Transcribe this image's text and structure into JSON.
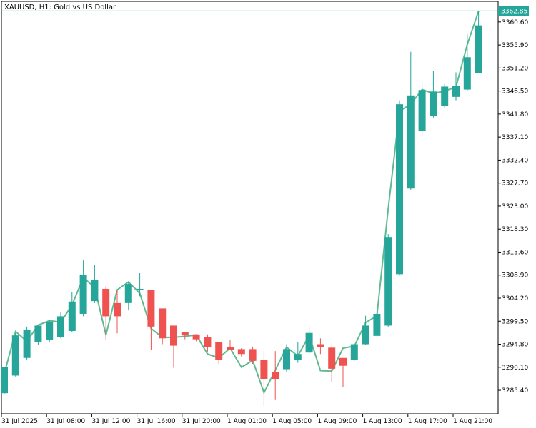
{
  "title": "XAUUSD, H1:  Gold vs US Dollar",
  "price_badge": "3362.85",
  "colors": {
    "bull": "#26a69a",
    "bear": "#ef5350",
    "line": "#5dbb8f",
    "axis": "#000000",
    "frame": "#000000"
  },
  "chart_data": {
    "type": "candlestick",
    "symbol": "XAUUSD",
    "timeframe": "H1",
    "ylim": [
      3280.6,
      3364.8
    ],
    "y_ticks": [
      "3360.60",
      "3355.90",
      "3351.20",
      "3346.50",
      "3341.80",
      "3337.10",
      "3332.40",
      "3327.70",
      "3323.00",
      "3318.30",
      "3313.60",
      "3308.90",
      "3304.20",
      "3299.50",
      "3294.80",
      "3290.10",
      "3285.40"
    ],
    "x_ticks": [
      {
        "label": "31 Jul 2025",
        "bar": 0
      },
      {
        "label": "31 Jul 08:00",
        "bar": 4
      },
      {
        "label": "31 Jul 12:00",
        "bar": 8
      },
      {
        "label": "31 Jul 16:00",
        "bar": 12
      },
      {
        "label": "31 Jul 20:00",
        "bar": 16
      },
      {
        "label": "1 Aug 01:00",
        "bar": 20
      },
      {
        "label": "1 Aug 05:00",
        "bar": 24
      },
      {
        "label": "1 Aug 09:00",
        "bar": 28
      },
      {
        "label": "1 Aug 13:00",
        "bar": 32
      },
      {
        "label": "1 Aug 17:00",
        "bar": 36
      },
      {
        "label": "1 Aug 21:00",
        "bar": 40
      }
    ],
    "last_price_line": 3362.85,
    "candles": [
      {
        "o": 3284.8,
        "h": 3290.2,
        "l": 3284.6,
        "c": 3290.1
      },
      {
        "o": 3288.4,
        "h": 3297.0,
        "l": 3288.2,
        "c": 3296.6
      },
      {
        "o": 3292.0,
        "h": 3298.4,
        "l": 3291.5,
        "c": 3297.8
      },
      {
        "o": 3295.2,
        "h": 3298.8,
        "l": 3294.7,
        "c": 3298.6
      },
      {
        "o": 3295.7,
        "h": 3299.8,
        "l": 3295.2,
        "c": 3299.4
      },
      {
        "o": 3296.3,
        "h": 3301.3,
        "l": 3296.0,
        "c": 3300.5
      },
      {
        "o": 3297.5,
        "h": 3305.4,
        "l": 3297.3,
        "c": 3303.5
      },
      {
        "o": 3301.0,
        "h": 3311.9,
        "l": 3300.5,
        "c": 3308.9
      },
      {
        "o": 3303.6,
        "h": 3311.0,
        "l": 3303.2,
        "c": 3307.9
      },
      {
        "o": 3306.1,
        "h": 3306.6,
        "l": 3295.7,
        "c": 3300.5
      },
      {
        "o": 3303.2,
        "h": 3305.8,
        "l": 3297.0,
        "c": 3300.5
      },
      {
        "o": 3303.2,
        "h": 3307.4,
        "l": 3301.7,
        "c": 3307.1
      },
      {
        "o": 3306.1,
        "h": 3309.3,
        "l": 3304.6,
        "c": 3306.1
      },
      {
        "o": 3305.8,
        "h": 3305.8,
        "l": 3293.7,
        "c": 3298.4
      },
      {
        "o": 3302.1,
        "h": 3302.1,
        "l": 3294.8,
        "c": 3296.0
      },
      {
        "o": 3298.6,
        "h": 3298.6,
        "l": 3290.0,
        "c": 3294.5
      },
      {
        "o": 3297.3,
        "h": 3297.3,
        "l": 3295.8,
        "c": 3296.6
      },
      {
        "o": 3296.8,
        "h": 3296.8,
        "l": 3295.4,
        "c": 3295.8
      },
      {
        "o": 3296.3,
        "h": 3296.8,
        "l": 3293.3,
        "c": 3294.2
      },
      {
        "o": 3295.3,
        "h": 3295.3,
        "l": 3290.8,
        "c": 3291.6
      },
      {
        "o": 3294.3,
        "h": 3295.7,
        "l": 3293.7,
        "c": 3293.6
      },
      {
        "o": 3293.8,
        "h": 3294.0,
        "l": 3292.3,
        "c": 3292.8
      },
      {
        "o": 3293.8,
        "h": 3294.3,
        "l": 3290.8,
        "c": 3291.4
      },
      {
        "o": 3291.6,
        "h": 3293.4,
        "l": 3282.2,
        "c": 3287.7
      },
      {
        "o": 3289.2,
        "h": 3293.4,
        "l": 3283.4,
        "c": 3287.7
      },
      {
        "o": 3289.7,
        "h": 3294.8,
        "l": 3289.2,
        "c": 3293.8
      },
      {
        "o": 3291.6,
        "h": 3295.3,
        "l": 3291.0,
        "c": 3292.8
      },
      {
        "o": 3293.1,
        "h": 3298.4,
        "l": 3292.8,
        "c": 3297.1
      },
      {
        "o": 3294.8,
        "h": 3296.0,
        "l": 3292.8,
        "c": 3294.2
      },
      {
        "o": 3294.1,
        "h": 3294.3,
        "l": 3287.1,
        "c": 3289.8
      },
      {
        "o": 3292.0,
        "h": 3292.0,
        "l": 3286.1,
        "c": 3290.4
      },
      {
        "o": 3291.6,
        "h": 3294.8,
        "l": 3291.4,
        "c": 3294.8
      },
      {
        "o": 3294.8,
        "h": 3300.6,
        "l": 3294.7,
        "c": 3298.6
      },
      {
        "o": 3296.5,
        "h": 3301.7,
        "l": 3296.3,
        "c": 3301.0
      },
      {
        "o": 3298.6,
        "h": 3317.3,
        "l": 3298.3,
        "c": 3316.7
      },
      {
        "o": 3309.1,
        "h": 3344.6,
        "l": 3308.8,
        "c": 3343.8
      },
      {
        "o": 3326.6,
        "h": 3354.5,
        "l": 3326.2,
        "c": 3345.6
      },
      {
        "o": 3338.4,
        "h": 3348.1,
        "l": 3337.5,
        "c": 3346.7
      },
      {
        "o": 3341.4,
        "h": 3350.6,
        "l": 3341.1,
        "c": 3346.4
      },
      {
        "o": 3343.4,
        "h": 3347.9,
        "l": 3343.1,
        "c": 3347.4
      },
      {
        "o": 3345.3,
        "h": 3350.3,
        "l": 3344.6,
        "c": 3347.6
      },
      {
        "o": 3346.8,
        "h": 3358.2,
        "l": 3346.5,
        "c": 3353.4
      },
      {
        "o": 3350.1,
        "h": 3362.8,
        "l": 3350.1,
        "c": 3359.9
      }
    ],
    "line_series": [
      3288.8,
      3297.4,
      3295.4,
      3298.7,
      3299.6,
      3299.3,
      3302.8,
      3308.4,
      3306.4,
      3296.7,
      3305.9,
      3307.5,
      3305.2,
      3298.0,
      3296.2,
      3296.2,
      3296.4,
      3296.7,
      3292.8,
      3292.0,
      3294.0,
      3290.1,
      3291.5,
      3284.9,
      3289.5,
      3294.2,
      3292.4,
      3296.6,
      3289.4,
      3289.3,
      3294.0,
      3294.4,
      3299.2,
      3300.6,
      3322.4,
      3342.4,
      3343.8,
      3346.8,
      3346.0,
      3346.5,
      3347.3,
      3356.0,
      3362.8
    ]
  }
}
